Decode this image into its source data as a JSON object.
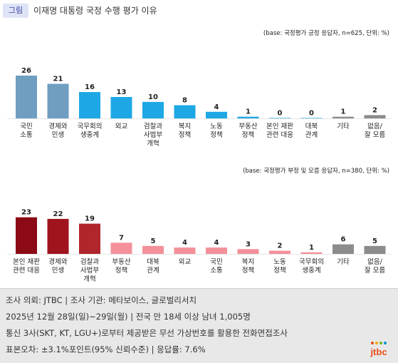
{
  "header": {
    "badge": "그림",
    "title": "이재명 대통령 국정 수행 평가 이유"
  },
  "chart_data": [
    {
      "type": "bar",
      "note": "(base: 국정평가 긍정 응답자, n=625, 단위: %)",
      "categories": [
        [
          "국민",
          "소통"
        ],
        [
          "경제와",
          "민생"
        ],
        [
          "국무회의",
          "생중계"
        ],
        [
          "외교"
        ],
        [
          "검찰과",
          "사법부",
          "개혁"
        ],
        [
          "복지",
          "정책"
        ],
        [
          "노동",
          "정책"
        ],
        [
          "부동산",
          "정책"
        ],
        [
          "본인 재판",
          "관련 대응"
        ],
        [
          "대북",
          "관계"
        ],
        [
          "기타"
        ],
        [
          "없음/",
          "잘 모름"
        ]
      ],
      "values": [
        26,
        21,
        16,
        13,
        10,
        8,
        4,
        1,
        0,
        0,
        1,
        2
      ],
      "colors": [
        "#6f9ec1",
        "#6f9ec1",
        "#1da7e5",
        "#1da7e5",
        "#1da7e5",
        "#1da7e5",
        "#1da7e5",
        "#1da7e5",
        "#1da7e5",
        "#1da7e5",
        "#8c8c8c",
        "#8c8c8c"
      ],
      "ylim": [
        0,
        30
      ]
    },
    {
      "type": "bar",
      "note": "(base: 국정평가 부정 및 모름 응답자, n=380, 단위: %)",
      "categories": [
        [
          "본인 재판",
          "관련 대응"
        ],
        [
          "경제와",
          "민생"
        ],
        [
          "검찰과",
          "사법부",
          "개혁"
        ],
        [
          "부동산",
          "정책"
        ],
        [
          "대북",
          "관계"
        ],
        [
          "외교"
        ],
        [
          "국민",
          "소통"
        ],
        [
          "복지",
          "정책"
        ],
        [
          "노동",
          "정책"
        ],
        [
          "국무회의",
          "생중계"
        ],
        [
          "기타"
        ],
        [
          "없음/",
          "잘 모름"
        ]
      ],
      "values": [
        23,
        22,
        19,
        7,
        5,
        4,
        4,
        3,
        2,
        1,
        6,
        5
      ],
      "colors": [
        "#8b0a16",
        "#a0141e",
        "#b1252c",
        "#f4909a",
        "#f4909a",
        "#f4909a",
        "#f4909a",
        "#f4909a",
        "#f4909a",
        "#f4909a",
        "#8c8c8c",
        "#8c8c8c"
      ],
      "ylim": [
        0,
        30
      ]
    }
  ],
  "footer": {
    "lines": [
      "조사 의뢰: JTBC  |  조사 기관: 메타보이스, 글로벌리서치",
      "2025년 12월 28일(일)~29일(월) | 전국 만 18세 이상 남녀 1,005명",
      "통신 3사(SKT, KT, LGU+)로부터 제공받은 무선 가상번호를 활용한 전화면접조사",
      "표본오차: ±3.1%포인트(95% 신뢰수준) | 응답률: 7.6%"
    ],
    "logo": "jtbc",
    "logo_colors": [
      "#e94e1b",
      "#f7a600",
      "#7ab51d",
      "#0093d3"
    ]
  }
}
